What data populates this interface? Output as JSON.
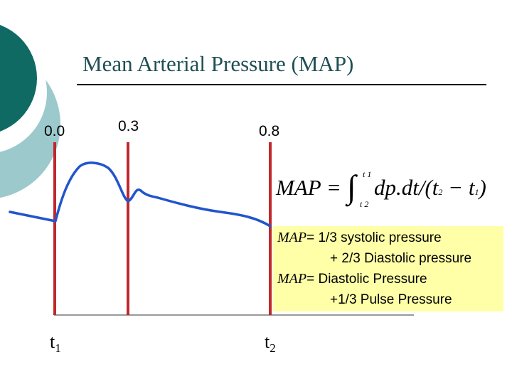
{
  "title": "Mean Arterial Pressure (MAP)",
  "ticks": [
    "0.0",
    "0.3",
    "0.8"
  ],
  "time_labels": [
    {
      "base": "t",
      "sub": "1"
    },
    {
      "base": "t",
      "sub": "2"
    }
  ],
  "formula": {
    "lhs": "MAP =",
    "upper": "t 1",
    "lower": "t 2",
    "body": "dp.dt/(t",
    "sub_a": "2",
    "minus_t": " − t",
    "sub_b": "1",
    "close": ")"
  },
  "notes": {
    "line1_term": "MAP",
    "line1_rest": "= 1/3 systolic pressure",
    "line2": "+ 2/3 Diastolic pressure",
    "line3_term": "MAP",
    "line3_rest": "= Diastolic Pressure",
    "line4": "+1/3 Pulse Pressure"
  },
  "colors": {
    "title": "#1f4f55",
    "teal_dark": "#0e6a63",
    "teal_light": "#9cc9cc",
    "marker_lines": "#c0282d",
    "curve": "#2255cc",
    "note_bg": "#ffff99"
  }
}
